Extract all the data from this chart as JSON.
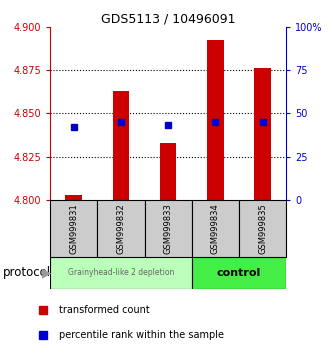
{
  "title": "GDS5113 / 10496091",
  "samples": [
    "GSM999831",
    "GSM999832",
    "GSM999833",
    "GSM999834",
    "GSM999835"
  ],
  "red_bar_tops": [
    4.803,
    4.863,
    4.833,
    4.892,
    4.876
  ],
  "red_bar_base": 4.8,
  "blue_squares": [
    4.842,
    4.845,
    4.843,
    4.845,
    4.845
  ],
  "ylim_left": [
    4.8,
    4.9
  ],
  "ylim_right": [
    0,
    100
  ],
  "yticks_left": [
    4.8,
    4.825,
    4.85,
    4.875,
    4.9
  ],
  "yticks_right": [
    0,
    25,
    50,
    75,
    100
  ],
  "ytick_labels_right": [
    "0",
    "25",
    "50",
    "75",
    "100%"
  ],
  "left_color": "#cc0000",
  "right_color": "#0000cc",
  "bar_color": "#cc0000",
  "square_color": "#0000cc",
  "group1_label": "Grainyhead-like 2 depletion",
  "group2_label": "control",
  "group1_color": "#bbffbb",
  "group2_color": "#44ee44",
  "protocol_label": "protocol",
  "legend_red": "transformed count",
  "legend_blue": "percentile rank within the sample",
  "bar_width": 0.35,
  "grid_linestyle": ":",
  "grid_linewidth": 0.8,
  "title_fontsize": 9,
  "tick_fontsize": 7,
  "sample_fontsize": 6,
  "legend_fontsize": 7,
  "protocol_fontsize": 8.5
}
